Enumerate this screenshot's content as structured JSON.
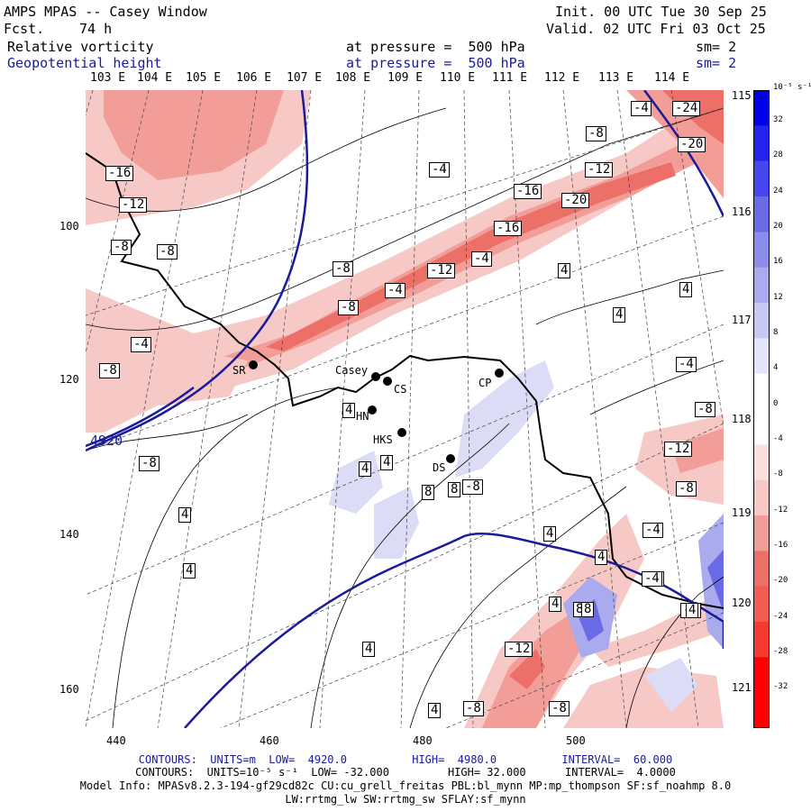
{
  "header": {
    "model": "AMPS MPAS -- Casey Window",
    "fcst_label": "Fcst.",
    "fcst_value": "74 h",
    "init": "Init. 00 UTC Tue 30 Sep 25",
    "valid": "Valid. 02 UTC Fri 03 Oct 25",
    "field1_name": "Relative vorticity",
    "field1_level": "at pressure =  500 hPa",
    "field1_sm": "sm= 2",
    "field2_name": "Geopotential height",
    "field2_level": "at pressure =  500 hPa",
    "field2_sm": "sm= 2"
  },
  "longitude_labels": [
    "103 E",
    "104 E",
    "105 E",
    "106 E",
    "107 E",
    "108 E",
    "109 E",
    "110 E",
    "111 E",
    "112 E",
    "113 E",
    "114 E"
  ],
  "latitude_labels": [
    "115 E",
    "116 E",
    "117 E",
    "118 E",
    "119 E",
    "120 E",
    "121 E"
  ],
  "x_axis_ticks": [
    "440",
    "460",
    "480",
    "500"
  ],
  "y_axis_ticks": [
    "100",
    "120",
    "140",
    "160"
  ],
  "colorbar": {
    "unit": "10⁻⁵ s⁻¹",
    "ticks": [
      "32",
      "28",
      "24",
      "20",
      "16",
      "12",
      "8",
      "4",
      "0",
      "-4",
      "-8",
      "-12",
      "-16",
      "-20",
      "-24",
      "-28",
      "-32"
    ]
  },
  "stations": [
    {
      "name": "Casey"
    },
    {
      "name": "CS"
    },
    {
      "name": "SR"
    },
    {
      "name": "CP"
    },
    {
      "name": "HN"
    },
    {
      "name": "HKS"
    },
    {
      "name": "DS"
    }
  ],
  "height_contour_label": "4920",
  "vorticity_labels": [
    "-4",
    "-24",
    "-8",
    "-20",
    "-16",
    "-12",
    "-4",
    "-16",
    "-12",
    "-20",
    "-8",
    "-16",
    "-8",
    "-4",
    "-8",
    "4",
    "-12",
    "-4",
    "-8",
    "4",
    "4",
    "-4",
    "-8",
    "-4",
    "4",
    "-8",
    "4",
    "-12",
    "4",
    "-8",
    "8",
    "8",
    "4",
    "-8",
    "4",
    "4",
    "4",
    "-4",
    "-4",
    "4",
    "4",
    "-4",
    "8",
    "4",
    "-12",
    "-8",
    "-8",
    "4",
    "-8",
    "8",
    "-4"
  ],
  "footer": {
    "line1": "CONTOURS:  UNITS=m  LOW=  4920.0          HIGH=  4980.0          INTERVAL=  60.000",
    "line2": "CONTOURS:  UNITS=10⁻⁵ s⁻¹  LOW= -32.000         HIGH= 32.000      INTERVAL=  4.0000",
    "line3": "Model Info: MPASv8.2.3-194-gf29cd82c CU:cu_grell_freitas PBL:bl_mynn MP:mp_thompson SF:sf_noahmp 8.0",
    "line4": "LW:rrtmg_lw SW:rrtmg_sw SFLAY:sf_mynn"
  },
  "colors": {
    "positive_dark": "#0000e6",
    "negative_dark": "#ff0000",
    "height_contour": "#1a1a9a",
    "coastline": "#000000"
  }
}
